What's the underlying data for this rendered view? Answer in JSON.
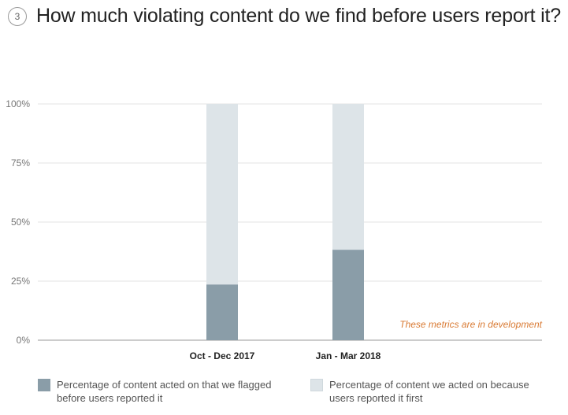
{
  "header": {
    "number": "3",
    "title": "How much violating content do we find before users report it?"
  },
  "chart_data": {
    "type": "bar",
    "stacked": true,
    "categories": [
      "Oct - Dec 2017",
      "Jan - Mar 2018"
    ],
    "series": [
      {
        "name": "Percentage of content acted on that we flagged before users reported it",
        "values": [
          23.6,
          38.3
        ],
        "color": "#8a9da8"
      },
      {
        "name": "Percentage of content we acted on because users reported it first",
        "values": [
          76.4,
          61.7
        ],
        "color": "#dde4e8"
      }
    ],
    "yticks": [
      "0%",
      "25%",
      "50%",
      "75%",
      "100%"
    ],
    "ylim": [
      0,
      100
    ],
    "annotation": "These metrics are in development",
    "annotation_color": "#d97a33",
    "grid": true
  },
  "legend": {
    "item1": "Percentage of content acted on that we flagged before users reported it",
    "item2": "Percentage of content we acted on because users reported it first"
  }
}
